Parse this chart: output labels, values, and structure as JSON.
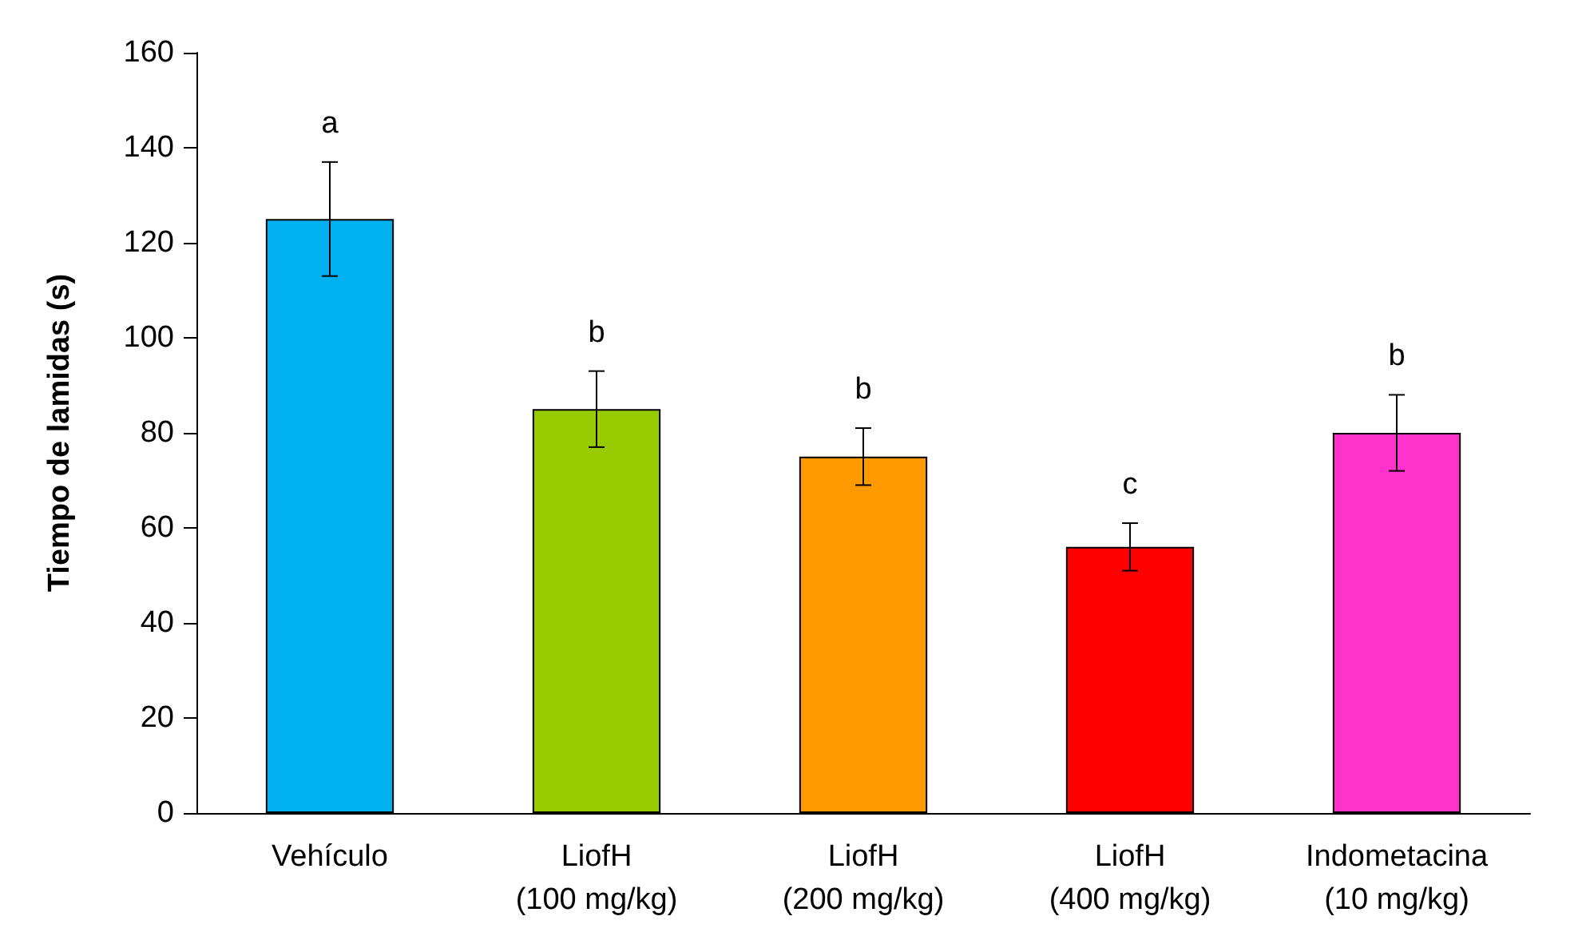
{
  "chart_data": {
    "type": "bar",
    "ylabel": "Tiempo de lamidas (s)",
    "categories": [
      "Vehículo",
      "LiofH\n(100 mg/kg)",
      "LiofH\n(200 mg/kg)",
      "LiofH\n(400 mg/kg)",
      "Indometacina\n(10 mg/kg)"
    ],
    "values": [
      125,
      85,
      75,
      56,
      80
    ],
    "errors": [
      12,
      8,
      6,
      5,
      8
    ],
    "colors": [
      "#00b0f0",
      "#99cc00",
      "#ff9900",
      "#ff0000",
      "#ff33cc"
    ],
    "ylim": [
      0,
      160
    ],
    "yticks": [
      0,
      20,
      40,
      60,
      80,
      100,
      120,
      140,
      160
    ],
    "grid": false,
    "annotations": [
      "a",
      "b",
      "b",
      "c",
      "b"
    ]
  }
}
